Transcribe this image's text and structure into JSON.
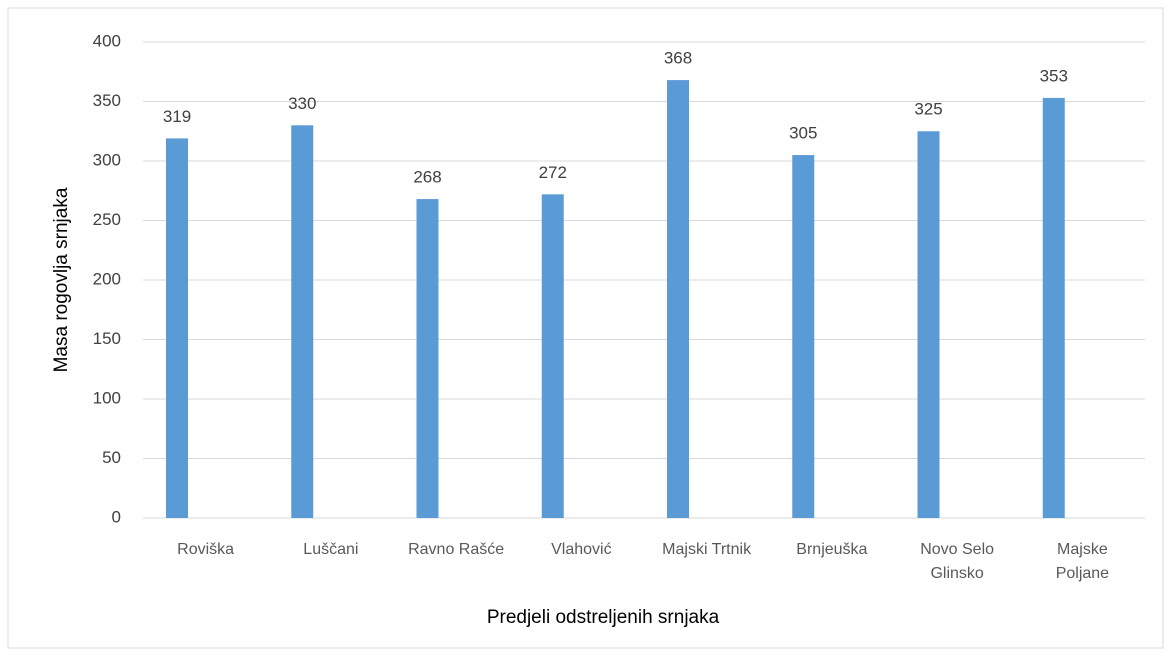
{
  "chart_data": {
    "type": "bar",
    "categories": [
      "Roviška",
      "Luščani",
      "Ravno Rašće",
      "Vlahović",
      "Majski Trtnik",
      "Brnjeuška",
      "Novo Selo Glinsko",
      "Majske Poljane"
    ],
    "values": [
      319,
      330,
      268,
      272,
      368,
      305,
      325,
      353
    ],
    "color": "#5b9bd5",
    "ylim": [
      0,
      400
    ],
    "yticks": [
      0,
      50,
      100,
      150,
      200,
      250,
      300,
      350,
      400
    ],
    "grid": true,
    "xlabel": "Predjeli odstreljenih srnjaka",
    "ylabel": "Masa rogovlja srnjaka"
  }
}
